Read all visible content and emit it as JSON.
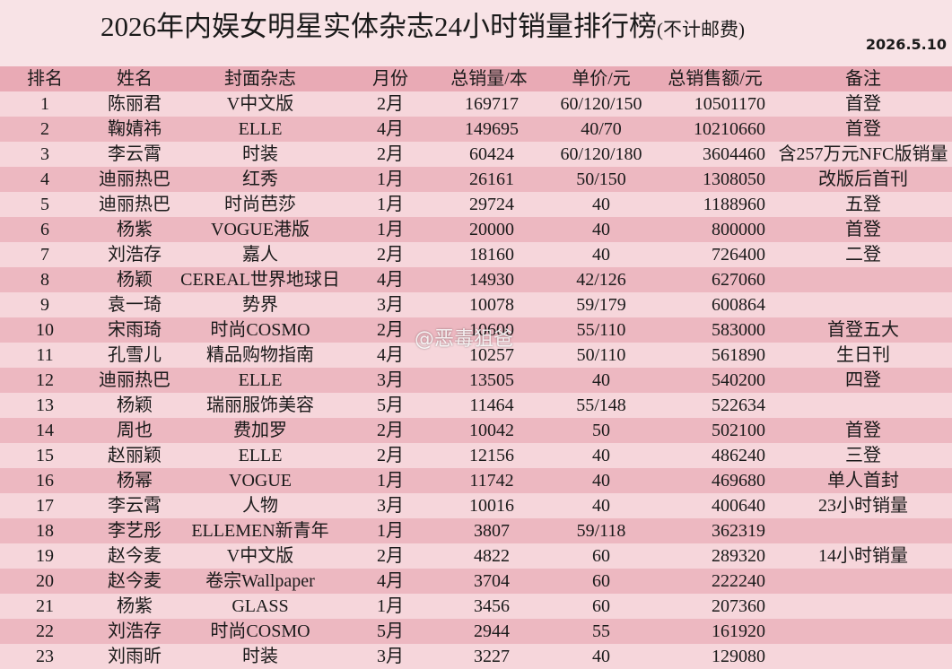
{
  "header": {
    "title": "2026年内娱女明星实体杂志24小时销量排行榜",
    "subtitle": "(不计邮费)",
    "date": "2026.5.10"
  },
  "table": {
    "columns": [
      "排名",
      "姓名",
      "封面杂志",
      "月份",
      "总销量/本",
      "单价/元",
      "总销售额/元",
      "备注"
    ],
    "rows": [
      [
        "1",
        "陈丽君",
        "V中文版",
        "2月",
        "169717",
        "60/120/150",
        "10501170",
        "首登"
      ],
      [
        "2",
        "鞠婧祎",
        "ELLE",
        "4月",
        "149695",
        "40/70",
        "10210660",
        "首登"
      ],
      [
        "3",
        "李云霄",
        "时装",
        "2月",
        "60424",
        "60/120/180",
        "3604460",
        "含257万元NFC版销量"
      ],
      [
        "4",
        "迪丽热巴",
        "红秀",
        "1月",
        "26161",
        "50/150",
        "1308050",
        "改版后首刊"
      ],
      [
        "5",
        "迪丽热巴",
        "时尚芭莎",
        "1月",
        "29724",
        "40",
        "1188960",
        "五登"
      ],
      [
        "6",
        "杨紫",
        "VOGUE港版",
        "1月",
        "20000",
        "40",
        "800000",
        "首登"
      ],
      [
        "7",
        "刘浩存",
        "嘉人",
        "2月",
        "18160",
        "40",
        "726400",
        "二登"
      ],
      [
        "8",
        "杨颖",
        "CEREAL世界地球日",
        "4月",
        "14930",
        "42/126",
        "627060",
        null
      ],
      [
        "9",
        "袁一琦",
        "势界",
        "3月",
        "10078",
        "59/179",
        "600864",
        null
      ],
      [
        "10",
        "宋雨琦",
        "时尚COSMO",
        "2月",
        "10600",
        "55/110",
        "583000",
        "首登五大"
      ],
      [
        "11",
        "孔雪儿",
        "精品购物指南",
        "4月",
        "10257",
        "50/110",
        "561890",
        "生日刊"
      ],
      [
        "12",
        "迪丽热巴",
        "ELLE",
        "3月",
        "13505",
        "40",
        "540200",
        "四登"
      ],
      [
        "13",
        "杨颖",
        "瑞丽服饰美容",
        "5月",
        "11464",
        "55/148",
        "522634",
        null
      ],
      [
        "14",
        "周也",
        "费加罗",
        "2月",
        "10042",
        "50",
        "502100",
        "首登"
      ],
      [
        "15",
        "赵丽颖",
        "ELLE",
        "2月",
        "12156",
        "40",
        "486240",
        "三登"
      ],
      [
        "16",
        "杨幂",
        "VOGUE",
        "1月",
        "11742",
        "40",
        "469680",
        "单人首封"
      ],
      [
        "17",
        "李云霄",
        "人物",
        "3月",
        "10016",
        "40",
        "400640",
        "23小时销量"
      ],
      [
        "18",
        "李艺彤",
        "ELLEMEN新青年",
        "1月",
        "3807",
        "59/118",
        "362319",
        null
      ],
      [
        "19",
        "赵今麦",
        "V中文版",
        "2月",
        "4822",
        "60",
        "289320",
        "14小时销量"
      ],
      [
        "20",
        "赵今麦",
        "卷宗Wallpaper",
        "4月",
        "3704",
        "60",
        "222240",
        null
      ],
      [
        "21",
        "杨紫",
        "GLASS",
        "1月",
        "3456",
        "60",
        "207360",
        null
      ],
      [
        "22",
        "刘浩存",
        "时尚COSMO",
        "5月",
        "2944",
        "55",
        "161920",
        null
      ],
      [
        "23",
        "刘雨昕",
        "时装",
        "3月",
        "3227",
        "40",
        "129080",
        null
      ]
    ]
  },
  "watermark": "@恶毒狙爸"
}
